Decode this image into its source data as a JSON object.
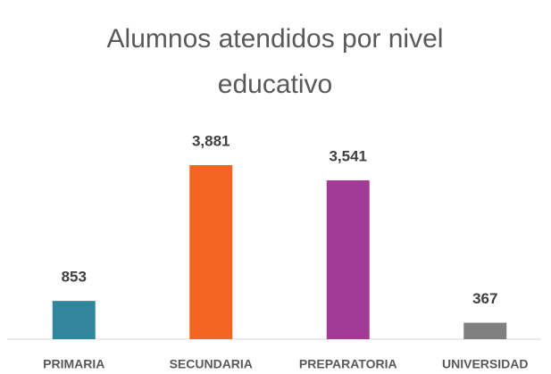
{
  "chart_data": {
    "type": "bar",
    "title": "Alumnos atendidos por nivel educativo",
    "categories": [
      "PRIMARIA",
      "SECUNDARIA",
      "PREPARATORIA",
      "UNIVERSIDAD"
    ],
    "values": [
      853,
      3881,
      3541,
      367
    ],
    "value_labels": [
      "853",
      "3,881",
      "3,541",
      "367"
    ],
    "colors": [
      "#31859c",
      "#f26522",
      "#a23b96",
      "#808080"
    ],
    "ylim": [
      0,
      4000
    ]
  }
}
